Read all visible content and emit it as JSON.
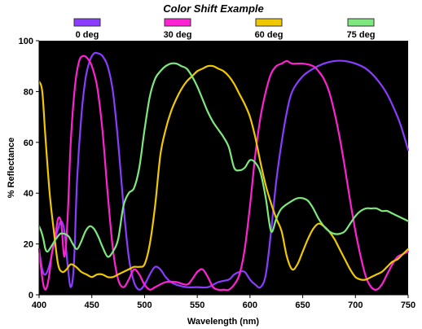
{
  "chart_data": {
    "type": "line",
    "title": "Color Shift Example",
    "xlabel": "Wavelength (nm)",
    "ylabel": "% Reflectance",
    "xlim": [
      400,
      750
    ],
    "ylim": [
      0,
      100
    ],
    "xticks": [
      400,
      450,
      500,
      550,
      600,
      650,
      700,
      750
    ],
    "yticks": [
      0,
      20,
      40,
      60,
      80,
      100
    ],
    "grid": false,
    "background": "#000000",
    "legend_placement": "top",
    "series": [
      {
        "name": "0 deg",
        "color": "#8a3cff",
        "x": [
          400,
          403,
          406,
          410,
          414,
          418,
          421,
          424,
          427,
          430,
          433,
          436,
          440,
          444,
          448,
          452,
          456,
          460,
          465,
          470,
          475,
          480,
          485,
          490,
          495,
          500,
          505,
          510,
          515,
          520,
          525,
          530,
          540,
          550,
          560,
          570,
          580,
          585,
          590,
          595,
          600,
          605,
          610,
          615,
          620,
          625,
          630,
          635,
          640,
          650,
          660,
          670,
          680,
          690,
          700,
          710,
          720,
          730,
          740,
          745,
          750
        ],
        "y": [
          18,
          10,
          8,
          12,
          20,
          26,
          29,
          25,
          12,
          3,
          12,
          45,
          70,
          85,
          92,
          95,
          95,
          94,
          90,
          80,
          60,
          35,
          15,
          5,
          2,
          4,
          8,
          11,
          10,
          7,
          5,
          4,
          3,
          3,
          3,
          5,
          6,
          8,
          9,
          9,
          6,
          4,
          3,
          8,
          25,
          45,
          60,
          72,
          80,
          86,
          89,
          91,
          92,
          92,
          91,
          89,
          85,
          79,
          70,
          64,
          57
        ]
      },
      {
        "name": "30 deg",
        "color": "#ff22d2",
        "x": [
          400,
          402,
          404,
          406,
          408,
          410,
          412,
          415,
          418,
          421,
          424,
          427,
          430,
          434,
          438,
          442,
          446,
          450,
          455,
          460,
          465,
          470,
          475,
          480,
          485,
          490,
          495,
          500,
          505,
          510,
          520,
          530,
          540,
          545,
          550,
          555,
          560,
          565,
          570,
          575,
          580,
          585,
          590,
          595,
          600,
          605,
          610,
          615,
          620,
          625,
          630,
          635,
          640,
          650,
          660,
          665,
          670,
          675,
          680,
          685,
          690,
          695,
          700,
          705,
          710,
          715,
          720,
          725,
          730,
          735,
          740,
          745,
          750
        ],
        "y": [
          18,
          10,
          4,
          2,
          4,
          9,
          16,
          22,
          30,
          28,
          15,
          30,
          60,
          82,
          92,
          94,
          93,
          90,
          82,
          65,
          40,
          18,
          6,
          3,
          6,
          10,
          8,
          4,
          2,
          3,
          5,
          5,
          4,
          6,
          9,
          10,
          7,
          3,
          2,
          2,
          2,
          4,
          8,
          18,
          35,
          55,
          70,
          80,
          87,
          90,
          91,
          92,
          91,
          91,
          90,
          88,
          85,
          80,
          72,
          62,
          50,
          37,
          25,
          15,
          7,
          3,
          2,
          4,
          8,
          12,
          15,
          16,
          17
        ]
      },
      {
        "name": "60 deg",
        "color": "#f0c800",
        "x": [
          400,
          403,
          406,
          410,
          414,
          418,
          422,
          426,
          430,
          435,
          440,
          445,
          450,
          455,
          460,
          465,
          470,
          475,
          480,
          485,
          490,
          495,
          500,
          505,
          510,
          515,
          520,
          525,
          530,
          535,
          540,
          545,
          550,
          555,
          560,
          565,
          570,
          575,
          580,
          585,
          590,
          595,
          600,
          605,
          610,
          615,
          620,
          625,
          630,
          635,
          640,
          645,
          650,
          655,
          660,
          665,
          670,
          675,
          680,
          685,
          690,
          695,
          700,
          705,
          710,
          715,
          720,
          725,
          730,
          735,
          740,
          745,
          750
        ],
        "y": [
          84,
          80,
          62,
          40,
          25,
          12,
          9,
          10,
          12,
          11,
          9,
          8,
          7,
          8,
          8,
          7,
          7,
          8,
          9,
          10,
          11,
          11,
          12,
          20,
          35,
          55,
          65,
          72,
          77,
          81,
          84,
          86,
          88,
          89,
          90,
          90,
          89,
          88,
          86,
          83,
          79,
          75,
          70,
          62,
          52,
          43,
          36,
          30,
          25,
          15,
          10,
          12,
          17,
          22,
          26,
          28,
          27,
          25,
          22,
          18,
          14,
          10,
          7,
          6,
          6,
          7,
          8,
          9,
          11,
          13,
          14,
          16,
          18
        ]
      },
      {
        "name": "75 deg",
        "color": "#7ee87e",
        "x": [
          400,
          402,
          404,
          406,
          408,
          410,
          413,
          416,
          420,
          424,
          428,
          432,
          436,
          440,
          444,
          448,
          452,
          456,
          460,
          465,
          470,
          475,
          480,
          485,
          490,
          495,
          500,
          505,
          510,
          515,
          520,
          525,
          530,
          535,
          540,
          545,
          550,
          555,
          560,
          565,
          570,
          575,
          580,
          585,
          590,
          595,
          600,
          605,
          610,
          615,
          620,
          625,
          630,
          640,
          645,
          650,
          655,
          660,
          665,
          670,
          675,
          680,
          685,
          690,
          695,
          700,
          705,
          710,
          715,
          720,
          725,
          730,
          735,
          740,
          745,
          750
        ],
        "y": [
          27,
          25,
          22,
          18,
          17,
          18,
          20,
          22,
          24,
          24,
          23,
          20,
          18,
          21,
          25,
          27,
          26,
          23,
          19,
          15,
          17,
          22,
          35,
          40,
          42,
          50,
          65,
          78,
          85,
          88,
          90,
          91,
          91,
          90,
          89,
          86,
          82,
          77,
          72,
          68,
          65,
          62,
          58,
          50,
          49,
          50,
          53,
          52,
          48,
          38,
          25,
          30,
          34,
          37,
          38,
          38,
          37,
          34,
          30,
          27,
          25,
          24,
          24,
          25,
          28,
          31,
          33,
          34,
          34,
          34,
          33,
          33,
          32,
          31,
          30,
          29
        ]
      }
    ]
  }
}
